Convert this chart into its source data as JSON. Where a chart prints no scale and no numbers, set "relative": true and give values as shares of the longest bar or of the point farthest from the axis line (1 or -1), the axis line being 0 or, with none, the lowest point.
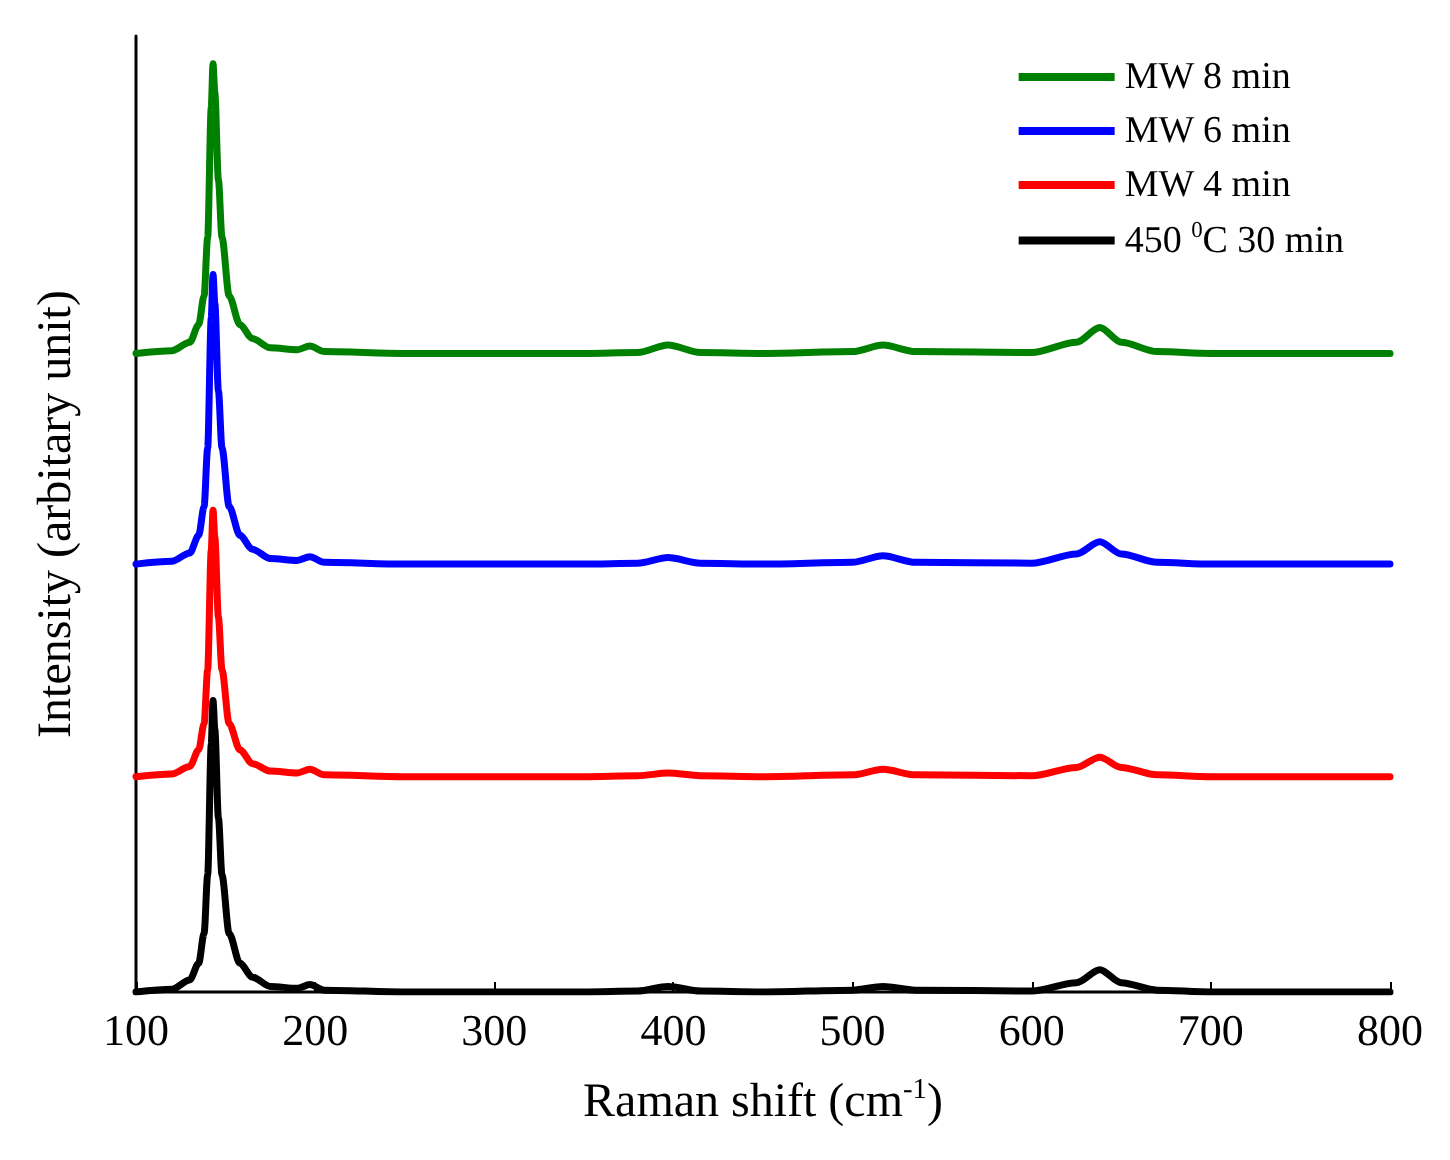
{
  "chart_data": {
    "type": "line",
    "relative": true,
    "xlabel": "Raman shift (cm$^{-1}$)",
    "ylabel": "Intensity (arbitary unit)",
    "x": [
      100,
      120,
      130,
      135,
      138,
      140,
      142,
      143,
      144,
      146,
      148,
      152,
      158,
      165,
      175,
      190,
      197,
      205,
      250,
      350,
      380,
      397,
      415,
      450,
      500,
      517,
      535,
      600,
      625,
      638,
      650,
      670,
      700,
      800
    ],
    "xlim": [
      100,
      800
    ],
    "xticks": [
      100,
      200,
      300,
      400,
      500,
      600,
      700,
      800
    ],
    "grid": false,
    "legend": "top right",
    "marker": "none",
    "line_style": "solid",
    "series": [
      {
        "name": "MW 8 min",
        "color": "#008000",
        "values": [
          0.688,
          0.691,
          0.7,
          0.719,
          0.75,
          0.813,
          0.953,
          1,
          0.969,
          0.875,
          0.813,
          0.75,
          0.719,
          0.704,
          0.694,
          0.692,
          0.696,
          0.69,
          0.688,
          0.688,
          0.689,
          0.697,
          0.689,
          0.688,
          0.69,
          0.697,
          0.69,
          0.689,
          0.7,
          0.716,
          0.7,
          0.69,
          0.688,
          0.688
        ]
      },
      {
        "name": "MW 6 min",
        "color": "#0000ff",
        "values": [
          0.461,
          0.464,
          0.473,
          0.492,
          0.523,
          0.586,
          0.726,
          0.773,
          0.742,
          0.648,
          0.586,
          0.523,
          0.492,
          0.477,
          0.467,
          0.465,
          0.469,
          0.463,
          0.461,
          0.461,
          0.462,
          0.468,
          0.462,
          0.461,
          0.463,
          0.47,
          0.463,
          0.462,
          0.472,
          0.485,
          0.472,
          0.463,
          0.461,
          0.461
        ]
      },
      {
        "name": "MW 4 min",
        "color": "#ff0000",
        "values": [
          0.232,
          0.235,
          0.243,
          0.261,
          0.289,
          0.347,
          0.476,
          0.519,
          0.49,
          0.404,
          0.347,
          0.289,
          0.261,
          0.246,
          0.238,
          0.236,
          0.24,
          0.234,
          0.232,
          0.232,
          0.233,
          0.236,
          0.233,
          0.232,
          0.234,
          0.24,
          0.234,
          0.233,
          0.242,
          0.253,
          0.242,
          0.234,
          0.232,
          0.232
        ]
      },
      {
        "name": "450 $^{0}$C 30 min",
        "color": "#000000",
        "values": [
          0,
          0.003,
          0.013,
          0.031,
          0.063,
          0.126,
          0.267,
          0.314,
          0.283,
          0.188,
          0.126,
          0.063,
          0.031,
          0.016,
          0.006,
          0.004,
          0.008,
          0.002,
          0,
          0,
          0.001,
          0.006,
          0.001,
          0,
          0.002,
          0.006,
          0.002,
          0.001,
          0.01,
          0.024,
          0.01,
          0.002,
          0,
          0
        ]
      }
    ]
  }
}
